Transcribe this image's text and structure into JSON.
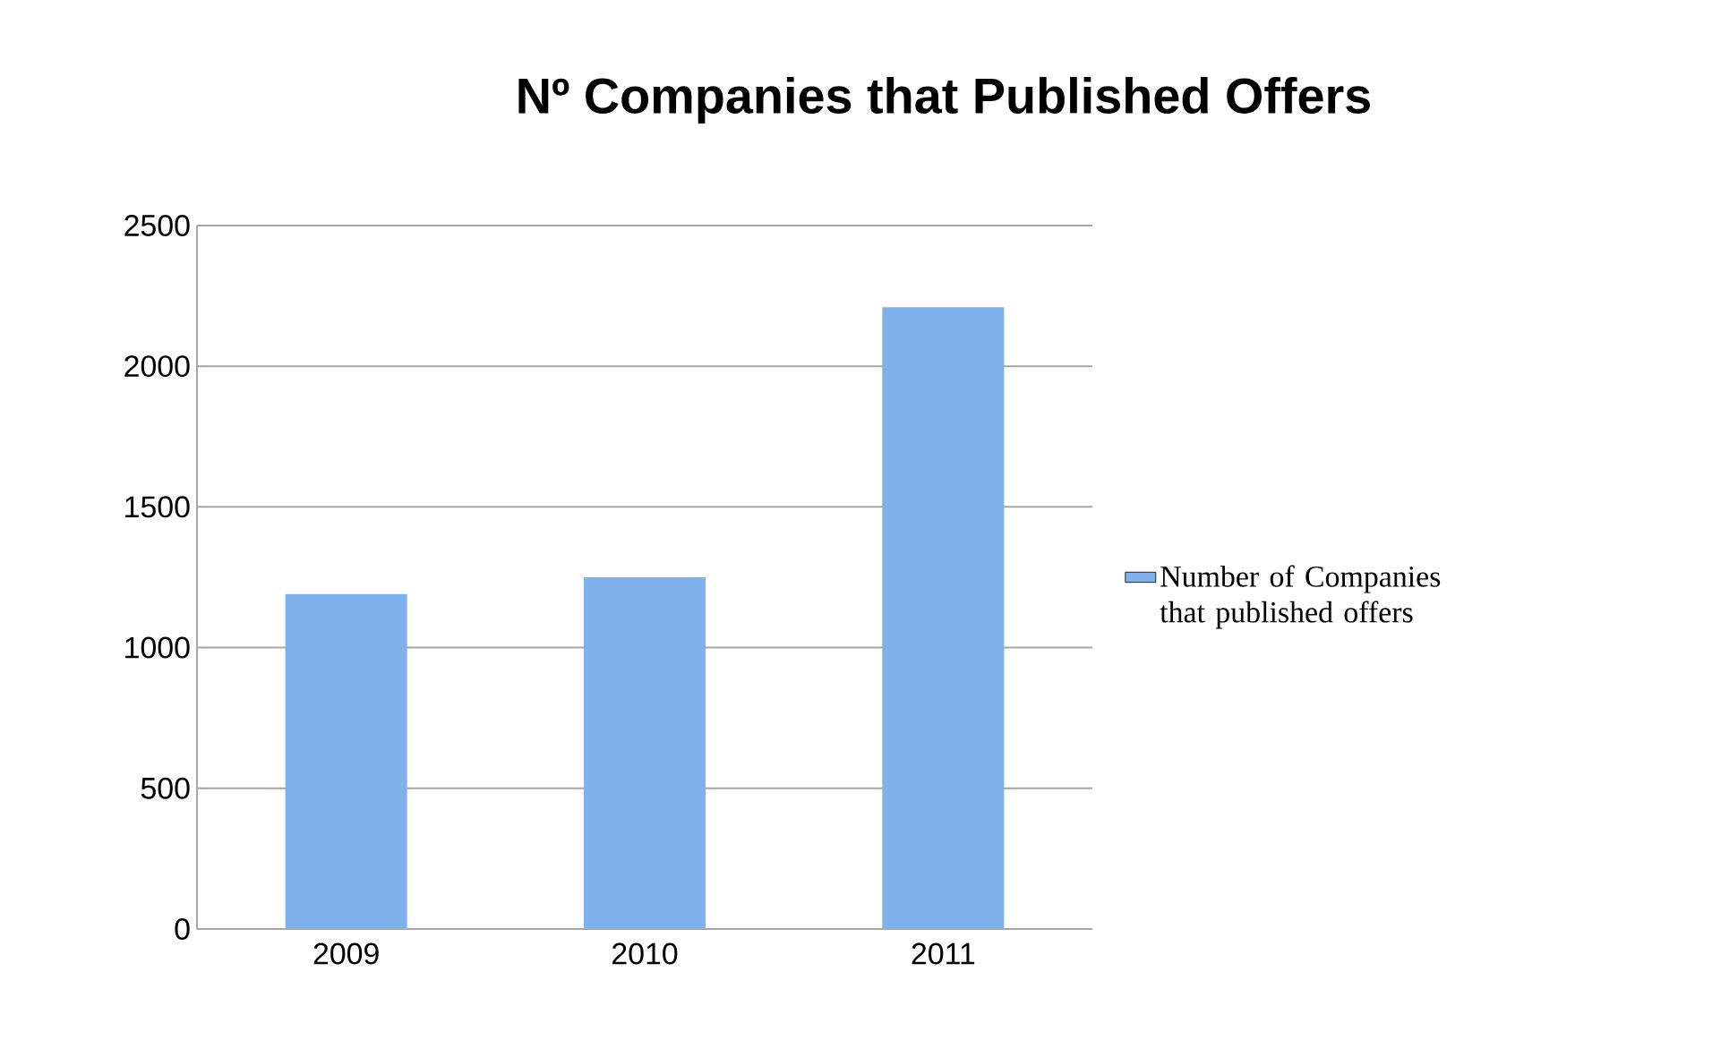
{
  "chart_data": {
    "type": "bar",
    "title": "Nº Companies that Published Offers",
    "categories": [
      "2009",
      "2010",
      "2011"
    ],
    "series": [
      {
        "name": "Number of Companies that published offers",
        "color": "#7fb1ec",
        "values": [
          1190,
          1250,
          2210
        ]
      }
    ],
    "ylim": [
      0,
      2500
    ],
    "yticks": [
      0,
      500,
      1000,
      1500,
      2000,
      2500
    ],
    "grid": "y",
    "legend": "right"
  }
}
